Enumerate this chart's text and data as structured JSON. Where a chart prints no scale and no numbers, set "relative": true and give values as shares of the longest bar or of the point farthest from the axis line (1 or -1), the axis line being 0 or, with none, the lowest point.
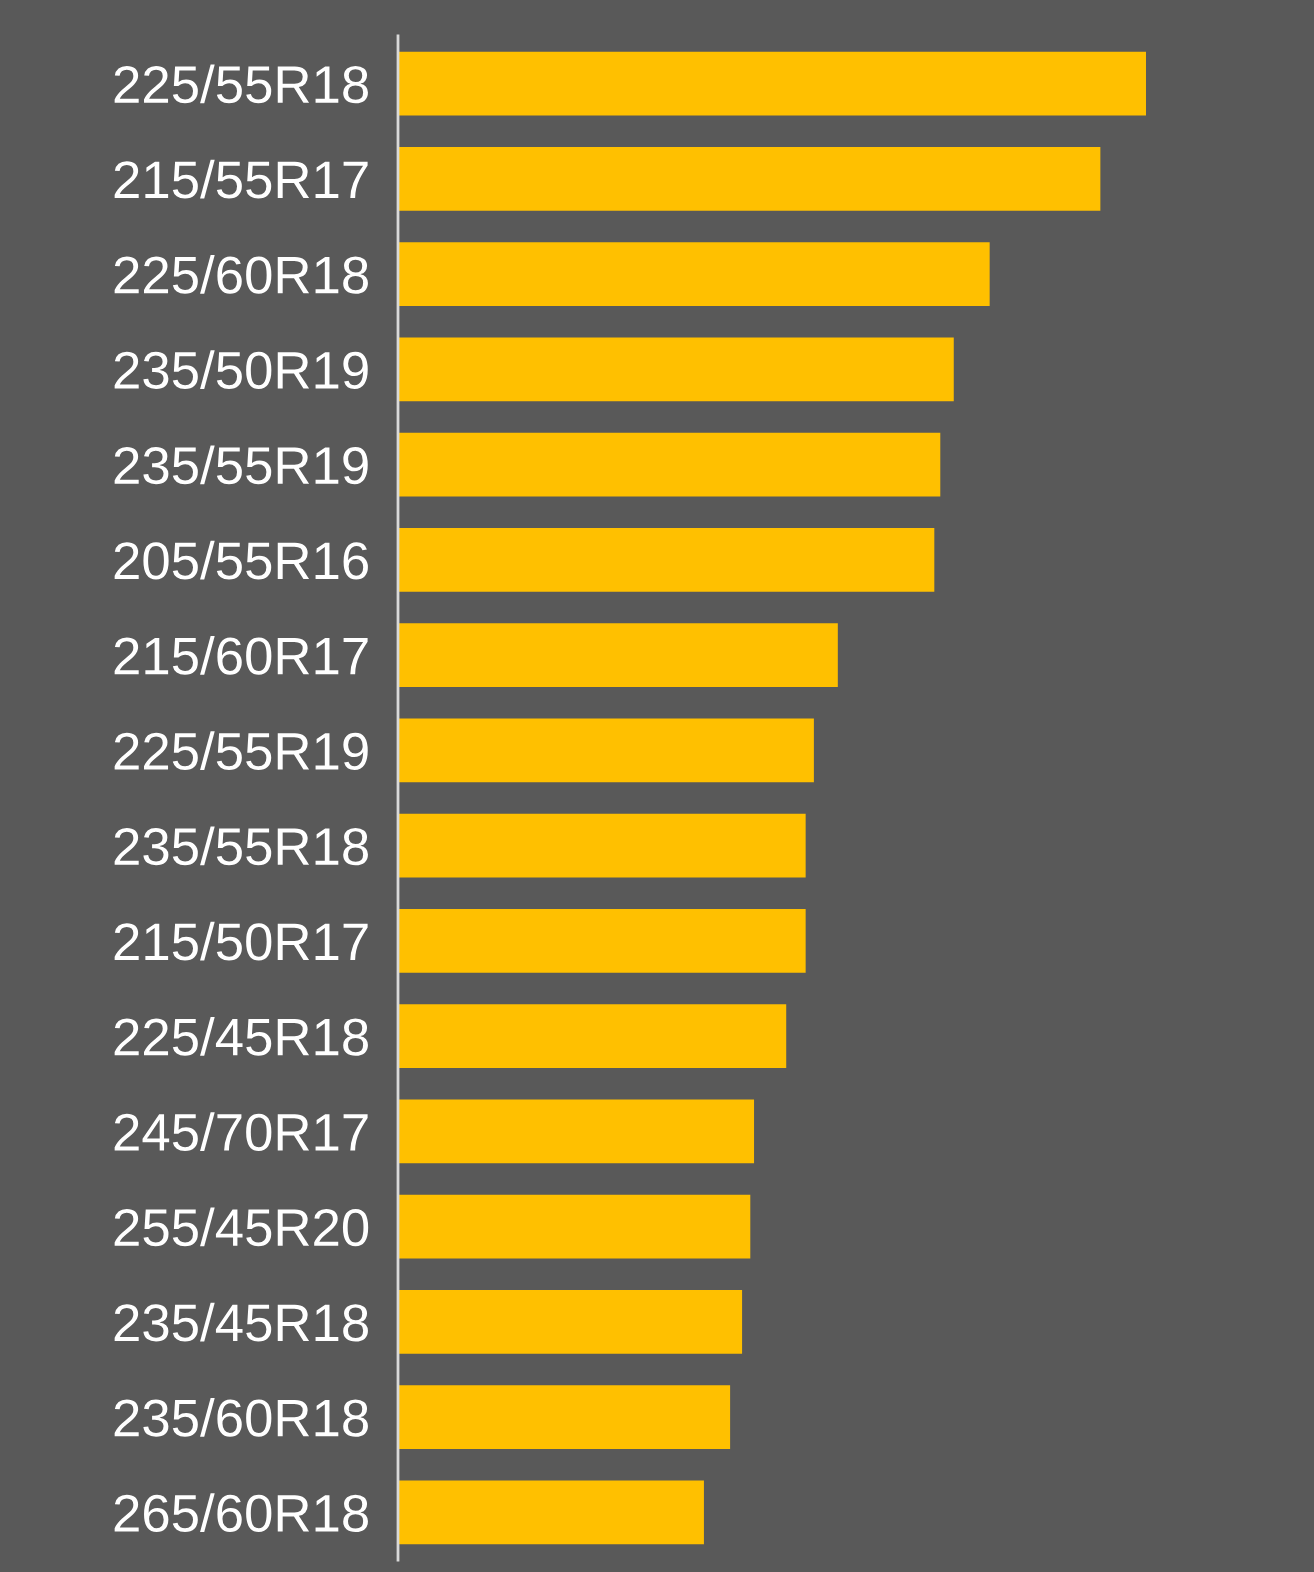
{
  "chart_data": {
    "type": "bar",
    "orientation": "horizontal",
    "relative": true,
    "color": "#ffc000",
    "categories": [
      "225/55R18",
      "215/55R17",
      "225/60R18",
      "235/50R19",
      "235/55R19",
      "205/55R16",
      "215/60R17",
      "225/55R19",
      "235/55R18",
      "215/50R17",
      "225/45R18",
      "245/70R17",
      "255/45R20",
      "235/45R18",
      "235/60R18",
      "265/60R18"
    ],
    "values": [
      1,
      0.939,
      0.791,
      0.743,
      0.725,
      0.717,
      0.588,
      0.556,
      0.545,
      0.545,
      0.519,
      0.476,
      0.471,
      0.46,
      0.444,
      0.409
    ],
    "grid": false,
    "legend": false
  }
}
